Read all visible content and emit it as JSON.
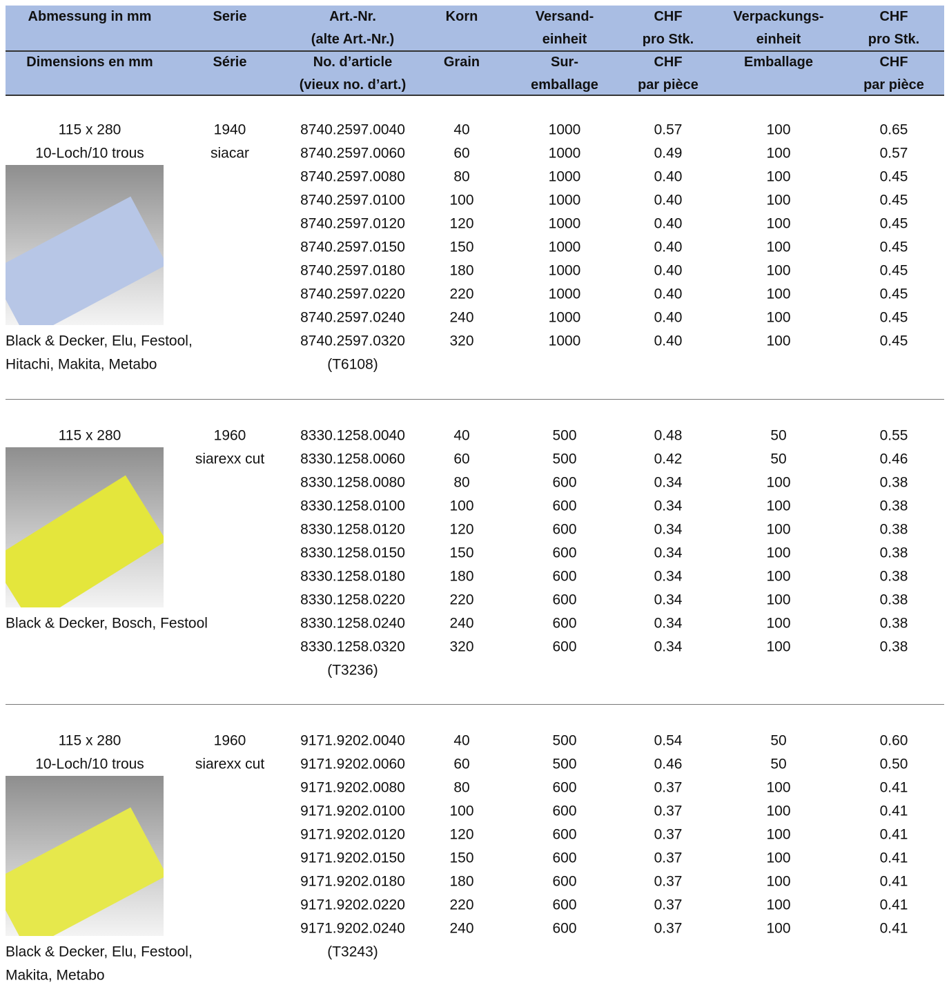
{
  "header": {
    "german": [
      [
        "Abmessung in mm"
      ],
      [
        "Serie"
      ],
      [
        "Art.-Nr.",
        "(alte Art.-Nr.)"
      ],
      [
        "Korn"
      ],
      [
        "Versand-",
        "einheit"
      ],
      [
        "CHF",
        "pro Stk."
      ],
      [
        "Verpackungs-",
        "einheit"
      ],
      [
        "CHF",
        "pro Stk."
      ]
    ],
    "french": [
      [
        "Dimensions en mm"
      ],
      [
        "Série"
      ],
      [
        "No. d’article",
        "(vieux no. d’art.)"
      ],
      [
        "Grain"
      ],
      [
        "Sur-",
        "emballage"
      ],
      [
        "CHF",
        "par pièce"
      ],
      [
        "Emballage"
      ],
      [
        "CHF",
        "par pièce"
      ]
    ]
  },
  "groups": [
    {
      "dimension": "115 x 280",
      "holes": "10-Loch/10 trous",
      "series": [
        "1940",
        "siacar"
      ],
      "rows": [
        [
          "8740.2597.0040",
          "40",
          "1000",
          "0.57",
          "100",
          "0.65"
        ],
        [
          "8740.2597.0060",
          "60",
          "1000",
          "0.49",
          "100",
          "0.57"
        ],
        [
          "8740.2597.0080",
          "80",
          "1000",
          "0.40",
          "100",
          "0.45"
        ],
        [
          "8740.2597.0100",
          "100",
          "1000",
          "0.40",
          "100",
          "0.45"
        ],
        [
          "8740.2597.0120",
          "120",
          "1000",
          "0.40",
          "100",
          "0.45"
        ],
        [
          "8740.2597.0150",
          "150",
          "1000",
          "0.40",
          "100",
          "0.45"
        ],
        [
          "8740.2597.0180",
          "180",
          "1000",
          "0.40",
          "100",
          "0.45"
        ],
        [
          "8740.2597.0220",
          "220",
          "1000",
          "0.40",
          "100",
          "0.45"
        ],
        [
          "8740.2597.0240",
          "240",
          "1000",
          "0.40",
          "100",
          "0.45"
        ],
        [
          "8740.2597.0320",
          "320",
          "1000",
          "0.40",
          "100",
          "0.45"
        ]
      ],
      "old_no": "(T6108)",
      "compat": [
        "Black & Decker, Elu, Festool,",
        "Hitachi, Makita, Metabo"
      ]
    },
    {
      "dimension": "115 x 280",
      "series": [
        "1960",
        "siarexx cut"
      ],
      "rows": [
        [
          "8330.1258.0040",
          "40",
          "500",
          "0.48",
          "50",
          "0.55"
        ],
        [
          "8330.1258.0060",
          "60",
          "500",
          "0.42",
          "50",
          "0.46"
        ],
        [
          "8330.1258.0080",
          "80",
          "600",
          "0.34",
          "100",
          "0.38"
        ],
        [
          "8330.1258.0100",
          "100",
          "600",
          "0.34",
          "100",
          "0.38"
        ],
        [
          "8330.1258.0120",
          "120",
          "600",
          "0.34",
          "100",
          "0.38"
        ],
        [
          "8330.1258.0150",
          "150",
          "600",
          "0.34",
          "100",
          "0.38"
        ],
        [
          "8330.1258.0180",
          "180",
          "600",
          "0.34",
          "100",
          "0.38"
        ],
        [
          "8330.1258.0220",
          "220",
          "600",
          "0.34",
          "100",
          "0.38"
        ],
        [
          "8330.1258.0240",
          "240",
          "600",
          "0.34",
          "100",
          "0.38"
        ],
        [
          "8330.1258.0320",
          "320",
          "600",
          "0.34",
          "100",
          "0.38"
        ]
      ],
      "old_no": "(T3236)",
      "compat": [
        "Black & Decker, Bosch, Festool"
      ]
    },
    {
      "dimension": "115 x 280",
      "holes": "10-Loch/10 trous",
      "series": [
        "1960",
        "siarexx cut"
      ],
      "rows": [
        [
          "9171.9202.0040",
          "40",
          "500",
          "0.54",
          "50",
          "0.60"
        ],
        [
          "9171.9202.0060",
          "60",
          "500",
          "0.46",
          "50",
          "0.50"
        ],
        [
          "9171.9202.0080",
          "80",
          "600",
          "0.37",
          "100",
          "0.41"
        ],
        [
          "9171.9202.0100",
          "100",
          "600",
          "0.37",
          "100",
          "0.41"
        ],
        [
          "9171.9202.0120",
          "120",
          "600",
          "0.37",
          "100",
          "0.41"
        ],
        [
          "9171.9202.0150",
          "150",
          "600",
          "0.37",
          "100",
          "0.41"
        ],
        [
          "9171.9202.0180",
          "180",
          "600",
          "0.37",
          "100",
          "0.41"
        ],
        [
          "9171.9202.0220",
          "220",
          "600",
          "0.37",
          "100",
          "0.41"
        ],
        [
          "9171.9202.0240",
          "240",
          "600",
          "0.37",
          "100",
          "0.41"
        ]
      ],
      "old_no": "(T3243)",
      "compat": [
        "Black & Decker, Elu, Festool,",
        "Makita, Metabo"
      ]
    }
  ]
}
